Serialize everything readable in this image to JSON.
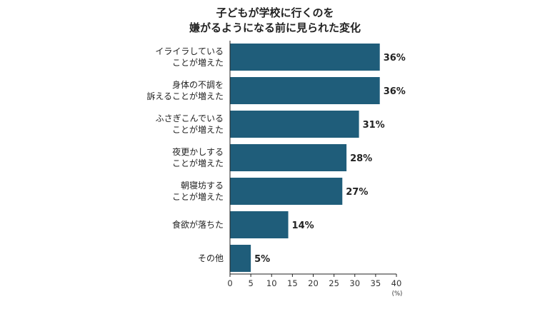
{
  "chart_data": {
    "type": "bar",
    "orientation": "horizontal",
    "title": [
      "子どもが学校に行くのを",
      "嫌がるようになる前に見られた変化"
    ],
    "categories": [
      [
        "イライラしている",
        "ことが増えた"
      ],
      [
        "身体の不調を",
        "訴えることが増えた"
      ],
      [
        "ふさぎこんでいる",
        "ことが増えた"
      ],
      [
        "夜更かしする",
        "ことが増えた"
      ],
      [
        "朝寝坊する",
        "ことが増えた"
      ],
      [
        "食欲が落ちた"
      ],
      [
        "その他"
      ]
    ],
    "values": [
      36,
      36,
      31,
      28,
      27,
      14,
      5
    ],
    "value_labels": [
      "36%",
      "36%",
      "31%",
      "28%",
      "27%",
      "14%",
      "5%"
    ],
    "xlim": [
      0,
      40
    ],
    "xticks": [
      0,
      5,
      10,
      15,
      20,
      25,
      30,
      35,
      40
    ],
    "x_unit": "(%)",
    "bar_color": "#1f5d7a",
    "grid": false
  }
}
